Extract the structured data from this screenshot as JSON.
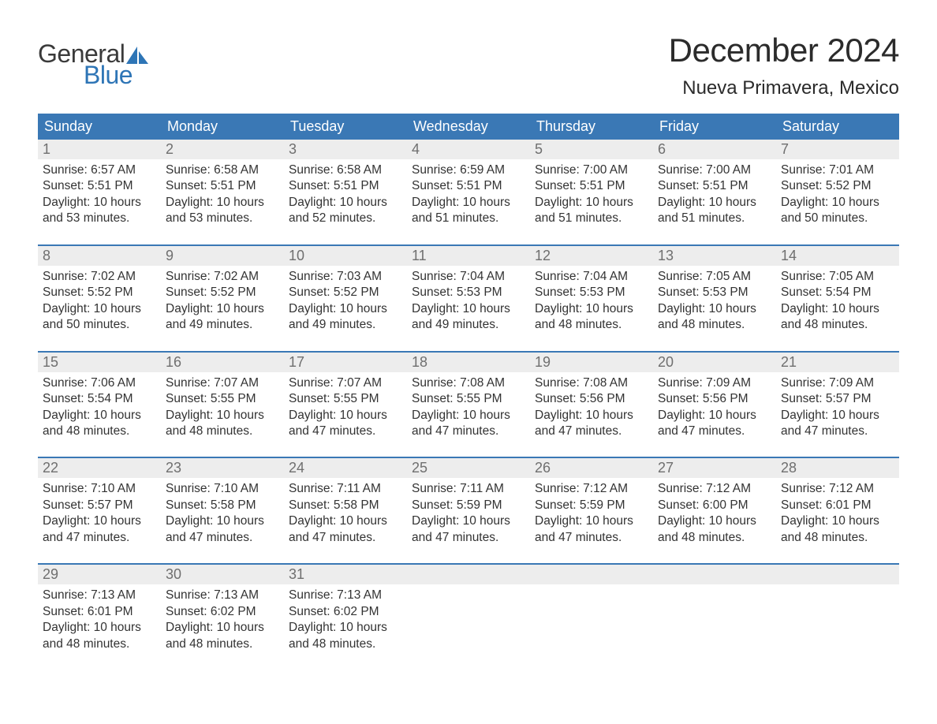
{
  "logo": {
    "word1": "General",
    "word2": "Blue",
    "sail_color": "#2e75b6"
  },
  "title": "December 2024",
  "location": "Nueva Primavera, Mexico",
  "colors": {
    "header_bg": "#3a78b5",
    "header_text": "#ffffff",
    "daynum_bg": "#ededed",
    "daynum_text": "#6f6f6f",
    "body_text": "#333333",
    "week_border": "#3a78b5",
    "page_bg": "#ffffff"
  },
  "typography": {
    "title_fontsize": 42,
    "location_fontsize": 24,
    "dayheader_fontsize": 18,
    "daynum_fontsize": 18,
    "dayinfo_fontsize": 15.5
  },
  "day_headers": [
    "Sunday",
    "Monday",
    "Tuesday",
    "Wednesday",
    "Thursday",
    "Friday",
    "Saturday"
  ],
  "weeks": [
    [
      {
        "n": "1",
        "sunrise": "Sunrise: 6:57 AM",
        "sunset": "Sunset: 5:51 PM",
        "d1": "Daylight: 10 hours",
        "d2": "and 53 minutes."
      },
      {
        "n": "2",
        "sunrise": "Sunrise: 6:58 AM",
        "sunset": "Sunset: 5:51 PM",
        "d1": "Daylight: 10 hours",
        "d2": "and 53 minutes."
      },
      {
        "n": "3",
        "sunrise": "Sunrise: 6:58 AM",
        "sunset": "Sunset: 5:51 PM",
        "d1": "Daylight: 10 hours",
        "d2": "and 52 minutes."
      },
      {
        "n": "4",
        "sunrise": "Sunrise: 6:59 AM",
        "sunset": "Sunset: 5:51 PM",
        "d1": "Daylight: 10 hours",
        "d2": "and 51 minutes."
      },
      {
        "n": "5",
        "sunrise": "Sunrise: 7:00 AM",
        "sunset": "Sunset: 5:51 PM",
        "d1": "Daylight: 10 hours",
        "d2": "and 51 minutes."
      },
      {
        "n": "6",
        "sunrise": "Sunrise: 7:00 AM",
        "sunset": "Sunset: 5:51 PM",
        "d1": "Daylight: 10 hours",
        "d2": "and 51 minutes."
      },
      {
        "n": "7",
        "sunrise": "Sunrise: 7:01 AM",
        "sunset": "Sunset: 5:52 PM",
        "d1": "Daylight: 10 hours",
        "d2": "and 50 minutes."
      }
    ],
    [
      {
        "n": "8",
        "sunrise": "Sunrise: 7:02 AM",
        "sunset": "Sunset: 5:52 PM",
        "d1": "Daylight: 10 hours",
        "d2": "and 50 minutes."
      },
      {
        "n": "9",
        "sunrise": "Sunrise: 7:02 AM",
        "sunset": "Sunset: 5:52 PM",
        "d1": "Daylight: 10 hours",
        "d2": "and 49 minutes."
      },
      {
        "n": "10",
        "sunrise": "Sunrise: 7:03 AM",
        "sunset": "Sunset: 5:52 PM",
        "d1": "Daylight: 10 hours",
        "d2": "and 49 minutes."
      },
      {
        "n": "11",
        "sunrise": "Sunrise: 7:04 AM",
        "sunset": "Sunset: 5:53 PM",
        "d1": "Daylight: 10 hours",
        "d2": "and 49 minutes."
      },
      {
        "n": "12",
        "sunrise": "Sunrise: 7:04 AM",
        "sunset": "Sunset: 5:53 PM",
        "d1": "Daylight: 10 hours",
        "d2": "and 48 minutes."
      },
      {
        "n": "13",
        "sunrise": "Sunrise: 7:05 AM",
        "sunset": "Sunset: 5:53 PM",
        "d1": "Daylight: 10 hours",
        "d2": "and 48 minutes."
      },
      {
        "n": "14",
        "sunrise": "Sunrise: 7:05 AM",
        "sunset": "Sunset: 5:54 PM",
        "d1": "Daylight: 10 hours",
        "d2": "and 48 minutes."
      }
    ],
    [
      {
        "n": "15",
        "sunrise": "Sunrise: 7:06 AM",
        "sunset": "Sunset: 5:54 PM",
        "d1": "Daylight: 10 hours",
        "d2": "and 48 minutes."
      },
      {
        "n": "16",
        "sunrise": "Sunrise: 7:07 AM",
        "sunset": "Sunset: 5:55 PM",
        "d1": "Daylight: 10 hours",
        "d2": "and 48 minutes."
      },
      {
        "n": "17",
        "sunrise": "Sunrise: 7:07 AM",
        "sunset": "Sunset: 5:55 PM",
        "d1": "Daylight: 10 hours",
        "d2": "and 47 minutes."
      },
      {
        "n": "18",
        "sunrise": "Sunrise: 7:08 AM",
        "sunset": "Sunset: 5:55 PM",
        "d1": "Daylight: 10 hours",
        "d2": "and 47 minutes."
      },
      {
        "n": "19",
        "sunrise": "Sunrise: 7:08 AM",
        "sunset": "Sunset: 5:56 PM",
        "d1": "Daylight: 10 hours",
        "d2": "and 47 minutes."
      },
      {
        "n": "20",
        "sunrise": "Sunrise: 7:09 AM",
        "sunset": "Sunset: 5:56 PM",
        "d1": "Daylight: 10 hours",
        "d2": "and 47 minutes."
      },
      {
        "n": "21",
        "sunrise": "Sunrise: 7:09 AM",
        "sunset": "Sunset: 5:57 PM",
        "d1": "Daylight: 10 hours",
        "d2": "and 47 minutes."
      }
    ],
    [
      {
        "n": "22",
        "sunrise": "Sunrise: 7:10 AM",
        "sunset": "Sunset: 5:57 PM",
        "d1": "Daylight: 10 hours",
        "d2": "and 47 minutes."
      },
      {
        "n": "23",
        "sunrise": "Sunrise: 7:10 AM",
        "sunset": "Sunset: 5:58 PM",
        "d1": "Daylight: 10 hours",
        "d2": "and 47 minutes."
      },
      {
        "n": "24",
        "sunrise": "Sunrise: 7:11 AM",
        "sunset": "Sunset: 5:58 PM",
        "d1": "Daylight: 10 hours",
        "d2": "and 47 minutes."
      },
      {
        "n": "25",
        "sunrise": "Sunrise: 7:11 AM",
        "sunset": "Sunset: 5:59 PM",
        "d1": "Daylight: 10 hours",
        "d2": "and 47 minutes."
      },
      {
        "n": "26",
        "sunrise": "Sunrise: 7:12 AM",
        "sunset": "Sunset: 5:59 PM",
        "d1": "Daylight: 10 hours",
        "d2": "and 47 minutes."
      },
      {
        "n": "27",
        "sunrise": "Sunrise: 7:12 AM",
        "sunset": "Sunset: 6:00 PM",
        "d1": "Daylight: 10 hours",
        "d2": "and 48 minutes."
      },
      {
        "n": "28",
        "sunrise": "Sunrise: 7:12 AM",
        "sunset": "Sunset: 6:01 PM",
        "d1": "Daylight: 10 hours",
        "d2": "and 48 minutes."
      }
    ],
    [
      {
        "n": "29",
        "sunrise": "Sunrise: 7:13 AM",
        "sunset": "Sunset: 6:01 PM",
        "d1": "Daylight: 10 hours",
        "d2": "and 48 minutes."
      },
      {
        "n": "30",
        "sunrise": "Sunrise: 7:13 AM",
        "sunset": "Sunset: 6:02 PM",
        "d1": "Daylight: 10 hours",
        "d2": "and 48 minutes."
      },
      {
        "n": "31",
        "sunrise": "Sunrise: 7:13 AM",
        "sunset": "Sunset: 6:02 PM",
        "d1": "Daylight: 10 hours",
        "d2": "and 48 minutes."
      },
      {
        "empty": true
      },
      {
        "empty": true
      },
      {
        "empty": true
      },
      {
        "empty": true
      }
    ]
  ]
}
